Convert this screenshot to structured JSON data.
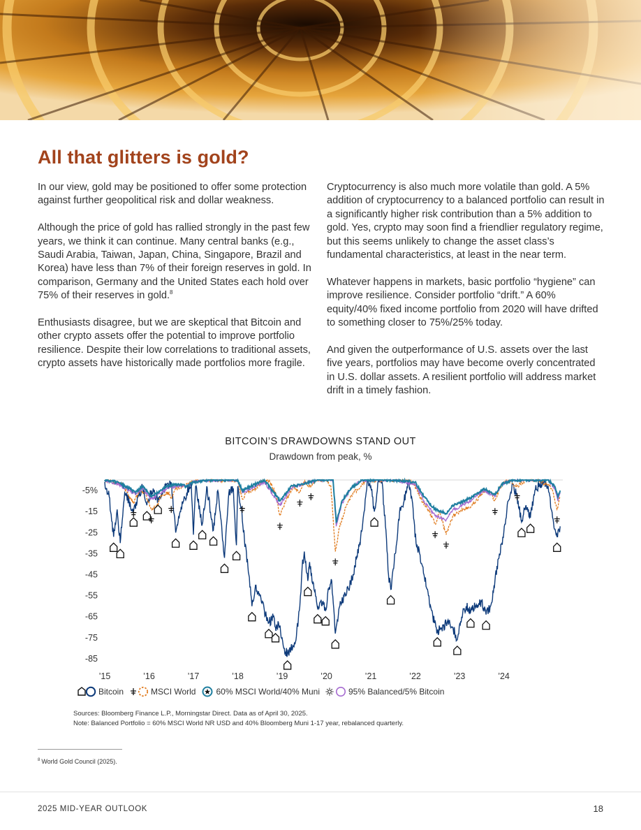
{
  "hero": {
    "alt_subject": "spiral-staircase-image"
  },
  "article": {
    "headline": "All that glitters is gold?",
    "left_paragraphs": [
      "In our view, gold may be positioned to offer some protection against further geopolitical risk and dollar weakness.",
      "Although the price of gold has rallied strongly in the past few years, we think it can continue. Many central banks (e.g., Saudi Arabia, Taiwan, Japan, China, Singapore, Brazil and Korea) have less than 7% of their foreign reserves in gold. In comparison, Germany and the United States each hold over 75% of their reserves in gold.",
      "Enthusiasts disagree, but we are skeptical that Bitcoin and other crypto assets offer the potential to improve portfolio resilience. Despite their low correlations to traditional assets, crypto assets have historically made portfolios more fragile."
    ],
    "footnote_ref": "8",
    "right_paragraphs": [
      "Cryptocurrency is also much more volatile than gold. A 5% addition of cryptocurrency to a balanced portfolio can result in a significantly higher risk contribution than a 5% addition to gold. Yes, crypto may soon find a friendlier regulatory regime, but this seems unlikely to change the asset class’s fundamental characteristics, at least in the near term.",
      "Whatever happens in markets, basic portfolio “hygiene” can improve resilience. Consider portfolio “drift.” A 60% equity/40% fixed income portfolio from 2020 will have drifted to something closer to 75%/25% today.",
      "And given the outperformance of U.S. assets over the last five years, portfolios may have become overly concentrated in U.S. dollar assets. A resilient portfolio will address market drift in a timely fashion."
    ]
  },
  "chart_data": {
    "type": "line",
    "title": "BITCOIN’S DRAWDOWNS STAND OUT",
    "subtitle": "Drawdown from peak, %",
    "xlabel": "",
    "ylabel": "",
    "x_ticks": [
      "’15",
      "’16",
      "’17",
      "’18",
      "’19",
      "’20",
      "’21",
      "’22",
      "’23",
      "’24"
    ],
    "x_tick_values": [
      2015,
      2016,
      2017,
      2018,
      2019,
      2020,
      2021,
      2022,
      2023,
      2024
    ],
    "y_ticks": [
      "-5%",
      "-15",
      "-25",
      "-35",
      "-45",
      "-55",
      "-65",
      "-75",
      "-85"
    ],
    "y_tick_values": [
      -5,
      -15,
      -25,
      -35,
      -45,
      -55,
      -65,
      -75,
      -85
    ],
    "ylim": [
      -88,
      0
    ],
    "xlim": [
      2015.0,
      2025.33
    ],
    "grid": false,
    "legend_position": "bottom-left",
    "series": [
      {
        "name": "Bitcoin",
        "color": "#0d3a7a",
        "points": [
          [
            2015.0,
            -1
          ],
          [
            2015.1,
            -8
          ],
          [
            2015.2,
            -27
          ],
          [
            2015.28,
            -14
          ],
          [
            2015.35,
            -30
          ],
          [
            2015.45,
            -6
          ],
          [
            2015.55,
            -10
          ],
          [
            2015.65,
            -15
          ],
          [
            2015.75,
            -8
          ],
          [
            2015.85,
            -3
          ],
          [
            2015.95,
            -12
          ],
          [
            2016.05,
            -5
          ],
          [
            2016.2,
            -9
          ],
          [
            2016.35,
            -4
          ],
          [
            2016.5,
            -2
          ],
          [
            2016.6,
            -25
          ],
          [
            2016.7,
            -15
          ],
          [
            2016.85,
            -6
          ],
          [
            2016.95,
            -1
          ],
          [
            2017.0,
            -26
          ],
          [
            2017.05,
            -3
          ],
          [
            2017.2,
            -21
          ],
          [
            2017.3,
            -3
          ],
          [
            2017.45,
            -24
          ],
          [
            2017.55,
            -5
          ],
          [
            2017.7,
            -37
          ],
          [
            2017.8,
            -6
          ],
          [
            2017.9,
            -4
          ],
          [
            2017.97,
            -31
          ],
          [
            2018.0,
            -3
          ],
          [
            2018.08,
            -13
          ],
          [
            2018.15,
            -28
          ],
          [
            2018.25,
            -45
          ],
          [
            2018.32,
            -60
          ],
          [
            2018.4,
            -50
          ],
          [
            2018.5,
            -55
          ],
          [
            2018.6,
            -62
          ],
          [
            2018.7,
            -68
          ],
          [
            2018.8,
            -65
          ],
          [
            2018.85,
            -70
          ],
          [
            2018.92,
            -68
          ],
          [
            2019.0,
            -75
          ],
          [
            2019.05,
            -80
          ],
          [
            2019.12,
            -83
          ],
          [
            2019.2,
            -80
          ],
          [
            2019.3,
            -77
          ],
          [
            2019.4,
            -60
          ],
          [
            2019.45,
            -42
          ],
          [
            2019.5,
            -34
          ],
          [
            2019.58,
            -48
          ],
          [
            2019.62,
            -39
          ],
          [
            2019.72,
            -52
          ],
          [
            2019.8,
            -61
          ],
          [
            2019.88,
            -57
          ],
          [
            2019.98,
            -62
          ],
          [
            2020.05,
            -52
          ],
          [
            2020.12,
            -48
          ],
          [
            2020.2,
            -73
          ],
          [
            2020.3,
            -60
          ],
          [
            2020.4,
            -55
          ],
          [
            2020.5,
            -52
          ],
          [
            2020.6,
            -45
          ],
          [
            2020.75,
            -30
          ],
          [
            2020.85,
            -15
          ],
          [
            2020.92,
            0
          ],
          [
            2021.0,
            -3
          ],
          [
            2021.08,
            -15
          ],
          [
            2021.18,
            0
          ],
          [
            2021.25,
            0
          ],
          [
            2021.33,
            -22
          ],
          [
            2021.4,
            -45
          ],
          [
            2021.45,
            -52
          ],
          [
            2021.55,
            -35
          ],
          [
            2021.65,
            -15
          ],
          [
            2021.75,
            -10
          ],
          [
            2021.85,
            0
          ],
          [
            2021.92,
            -8
          ],
          [
            2022.02,
            -30
          ],
          [
            2022.1,
            -35
          ],
          [
            2022.2,
            -45
          ],
          [
            2022.3,
            -55
          ],
          [
            2022.4,
            -65
          ],
          [
            2022.5,
            -72
          ],
          [
            2022.6,
            -70
          ],
          [
            2022.72,
            -68
          ],
          [
            2022.85,
            -70
          ],
          [
            2022.95,
            -76
          ],
          [
            2023.05,
            -65
          ],
          [
            2023.15,
            -60
          ],
          [
            2023.25,
            -63
          ],
          [
            2023.35,
            -60
          ],
          [
            2023.5,
            -58
          ],
          [
            2023.6,
            -64
          ],
          [
            2023.7,
            -60
          ],
          [
            2023.8,
            -48
          ],
          [
            2023.9,
            -35
          ],
          [
            2024.0,
            -25
          ],
          [
            2024.1,
            -10
          ],
          [
            2024.2,
            -2
          ],
          [
            2024.3,
            -8
          ],
          [
            2024.4,
            -20
          ],
          [
            2024.5,
            -12
          ],
          [
            2024.6,
            -18
          ],
          [
            2024.7,
            -5
          ],
          [
            2024.8,
            -2
          ],
          [
            2024.9,
            -1
          ],
          [
            2025.0,
            -3
          ],
          [
            2025.1,
            -18
          ],
          [
            2025.2,
            -27
          ],
          [
            2025.27,
            -22
          ]
        ]
      },
      {
        "name": "MSCI World",
        "color": "#e07b1e",
        "points": [
          [
            2015.0,
            0
          ],
          [
            2015.2,
            -1
          ],
          [
            2015.4,
            -2
          ],
          [
            2015.55,
            -8
          ],
          [
            2015.65,
            -11
          ],
          [
            2015.8,
            -5
          ],
          [
            2015.9,
            -6
          ],
          [
            2016.05,
            -14
          ],
          [
            2016.15,
            -13
          ],
          [
            2016.3,
            -7
          ],
          [
            2016.45,
            -6
          ],
          [
            2016.5,
            -9
          ],
          [
            2016.6,
            -4
          ],
          [
            2016.8,
            -3
          ],
          [
            2016.95,
            -1
          ],
          [
            2017.1,
            0
          ],
          [
            2017.5,
            0
          ],
          [
            2018.0,
            0
          ],
          [
            2018.1,
            -9
          ],
          [
            2018.2,
            -6
          ],
          [
            2018.4,
            -4
          ],
          [
            2018.55,
            -1
          ],
          [
            2018.7,
            0
          ],
          [
            2018.85,
            -6
          ],
          [
            2018.95,
            -17
          ],
          [
            2019.1,
            -9
          ],
          [
            2019.25,
            -3
          ],
          [
            2019.4,
            -6
          ],
          [
            2019.5,
            -1
          ],
          [
            2019.65,
            -3
          ],
          [
            2019.8,
            0
          ],
          [
            2020.0,
            0
          ],
          [
            2020.1,
            -3
          ],
          [
            2020.2,
            -34
          ],
          [
            2020.3,
            -22
          ],
          [
            2020.45,
            -12
          ],
          [
            2020.6,
            -6
          ],
          [
            2020.75,
            -4
          ],
          [
            2020.9,
            0
          ],
          [
            2021.2,
            0
          ],
          [
            2021.6,
            0
          ],
          [
            2021.9,
            0
          ],
          [
            2022.05,
            -5
          ],
          [
            2022.15,
            -10
          ],
          [
            2022.3,
            -14
          ],
          [
            2022.45,
            -21
          ],
          [
            2022.55,
            -15
          ],
          [
            2022.7,
            -26
          ],
          [
            2022.85,
            -17
          ],
          [
            2023.0,
            -15
          ],
          [
            2023.2,
            -13
          ],
          [
            2023.35,
            -11
          ],
          [
            2023.55,
            -5
          ],
          [
            2023.7,
            -6
          ],
          [
            2023.8,
            -10
          ],
          [
            2023.9,
            -4
          ],
          [
            2024.05,
            0
          ],
          [
            2024.3,
            -3
          ],
          [
            2024.5,
            0
          ],
          [
            2024.7,
            0
          ],
          [
            2025.0,
            -2
          ],
          [
            2025.1,
            -5
          ],
          [
            2025.2,
            -14
          ],
          [
            2025.27,
            -8
          ]
        ]
      },
      {
        "name": "60% MSCI World/40% Muni",
        "color": "#1f7fa0",
        "points": [
          [
            2015.0,
            0
          ],
          [
            2015.3,
            -1
          ],
          [
            2015.55,
            -4
          ],
          [
            2015.7,
            -6
          ],
          [
            2015.85,
            -3
          ],
          [
            2016.05,
            -8
          ],
          [
            2016.2,
            -6
          ],
          [
            2016.4,
            -3
          ],
          [
            2016.6,
            -2
          ],
          [
            2016.85,
            -3
          ],
          [
            2017.0,
            -1
          ],
          [
            2017.3,
            0
          ],
          [
            2018.0,
            0
          ],
          [
            2018.1,
            -5
          ],
          [
            2018.3,
            -3
          ],
          [
            2018.6,
            0
          ],
          [
            2018.95,
            -10
          ],
          [
            2019.2,
            -3
          ],
          [
            2019.45,
            -2
          ],
          [
            2019.8,
            0
          ],
          [
            2020.15,
            0
          ],
          [
            2020.22,
            -20
          ],
          [
            2020.35,
            -10
          ],
          [
            2020.55,
            -4
          ],
          [
            2020.8,
            0
          ],
          [
            2021.5,
            0
          ],
          [
            2022.0,
            -1
          ],
          [
            2022.2,
            -8
          ],
          [
            2022.45,
            -14
          ],
          [
            2022.7,
            -16
          ],
          [
            2022.85,
            -12
          ],
          [
            2023.0,
            -11
          ],
          [
            2023.3,
            -8
          ],
          [
            2023.55,
            -4
          ],
          [
            2023.8,
            -7
          ],
          [
            2023.95,
            -2
          ],
          [
            2024.2,
            0
          ],
          [
            2024.6,
            0
          ],
          [
            2025.0,
            0
          ],
          [
            2025.15,
            -3
          ],
          [
            2025.22,
            -8
          ],
          [
            2025.27,
            -5
          ]
        ]
      },
      {
        "name": "95% Balanced/5% Bitcoin",
        "color": "#a56ad0",
        "points": [
          [
            2015.0,
            0
          ],
          [
            2015.3,
            -2
          ],
          [
            2015.55,
            -5
          ],
          [
            2015.7,
            -7
          ],
          [
            2015.85,
            -4
          ],
          [
            2016.05,
            -9
          ],
          [
            2016.2,
            -7
          ],
          [
            2016.4,
            -4
          ],
          [
            2016.6,
            -3
          ],
          [
            2016.85,
            -3
          ],
          [
            2017.0,
            -1
          ],
          [
            2017.3,
            0
          ],
          [
            2018.0,
            0
          ],
          [
            2018.1,
            -6
          ],
          [
            2018.3,
            -4
          ],
          [
            2018.6,
            -1
          ],
          [
            2018.95,
            -12
          ],
          [
            2019.2,
            -4
          ],
          [
            2019.45,
            -2
          ],
          [
            2019.8,
            0
          ],
          [
            2020.15,
            0
          ],
          [
            2020.22,
            -22
          ],
          [
            2020.35,
            -11
          ],
          [
            2020.55,
            -4
          ],
          [
            2020.8,
            0
          ],
          [
            2021.5,
            0
          ],
          [
            2022.0,
            -2
          ],
          [
            2022.2,
            -10
          ],
          [
            2022.45,
            -17
          ],
          [
            2022.7,
            -19
          ],
          [
            2022.85,
            -14
          ],
          [
            2023.0,
            -13
          ],
          [
            2023.3,
            -9
          ],
          [
            2023.55,
            -5
          ],
          [
            2023.8,
            -8
          ],
          [
            2023.95,
            -2
          ],
          [
            2024.2,
            0
          ],
          [
            2024.6,
            0
          ],
          [
            2025.0,
            0
          ],
          [
            2025.15,
            -4
          ],
          [
            2025.22,
            -10
          ],
          [
            2025.27,
            -6
          ]
        ]
      }
    ],
    "legend": [
      {
        "label": "Bitcoin",
        "color": "#0d3a7a",
        "marker": "circle"
      },
      {
        "label": "MSCI World",
        "color": "#e07b1e",
        "marker": "dashed-circle"
      },
      {
        "label": "60% MSCI World/40% Muni",
        "color": "#1f7fa0",
        "marker": "star-circle"
      },
      {
        "label": "95% Balanced/5% Bitcoin",
        "color": "#a56ad0",
        "marker": "circle"
      }
    ]
  },
  "notes": {
    "sources": "Sources: Bloomberg Finance L.P., Morningstar Direct. Data as of April 30, 2025.",
    "note": "Note: Balanced Portfolio = 60% MSCI World NR USD and 40% Bloomberg Muni 1-17 year, rebalanced quarterly."
  },
  "footnote": {
    "number": "8",
    "text": "World Gold Council (2025)."
  },
  "footer": {
    "left": "2025 MID-YEAR OUTLOOK",
    "page_number": "18"
  }
}
